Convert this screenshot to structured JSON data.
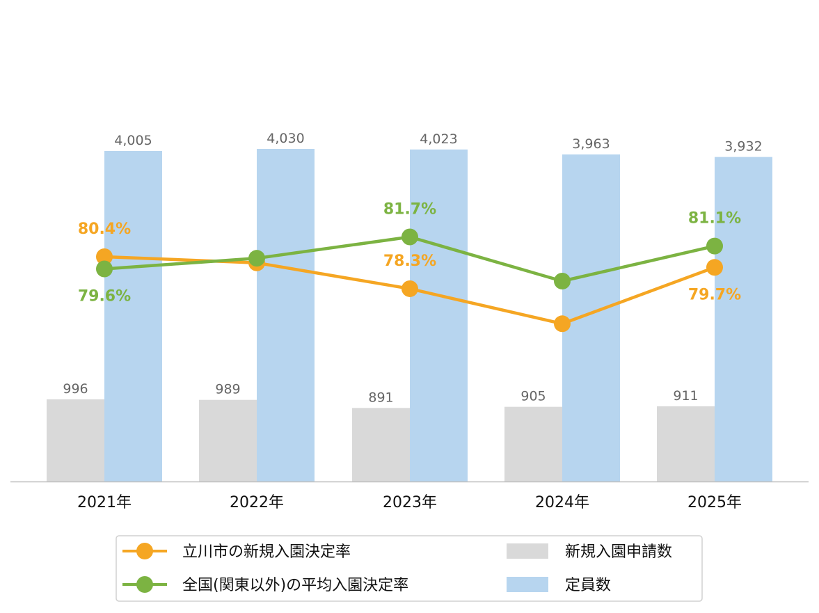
{
  "chart_data": {
    "type": "bar",
    "title": "",
    "xlabel": "",
    "ylabel": "",
    "categories": [
      "2021年",
      "2022年",
      "2023年",
      "2024年",
      "2025年"
    ],
    "bar_series": [
      {
        "name": "新規入園申請数",
        "color": "#d9d9d9",
        "values": [
          996,
          989,
          891,
          905,
          911
        ],
        "labels": [
          "996",
          "989",
          "891",
          "905",
          "911"
        ]
      },
      {
        "name": "定員数",
        "color": "#b7d5ef",
        "values": [
          4005,
          4030,
          4023,
          3963,
          3932
        ],
        "labels": [
          "4,005",
          "4,030",
          "4,023",
          "3,963",
          "3,932"
        ]
      }
    ],
    "bar_ylim": [
      0,
      4030
    ],
    "line_series": [
      {
        "name": "立川市の新規入園決定率",
        "color": "#f5a623",
        "values": [
          80.4,
          80.0,
          78.3,
          76.0,
          79.7
        ],
        "labels": [
          "80.4%",
          "",
          "78.3%",
          "",
          "79.7%"
        ],
        "label_position": [
          "above",
          "",
          "above",
          "",
          "below"
        ]
      },
      {
        "name": "全国(関東以外)の平均入園決定率",
        "color": "#7cb342",
        "values": [
          79.6,
          80.3,
          81.7,
          78.8,
          81.1
        ],
        "labels": [
          "79.6%",
          "",
          "81.7%",
          "",
          "81.1%"
        ],
        "label_position": [
          "below",
          "",
          "above",
          "",
          "above"
        ]
      }
    ],
    "line_ylim": [
      64.0,
      86.2
    ],
    "grid": false,
    "legend_position": "bottom"
  }
}
